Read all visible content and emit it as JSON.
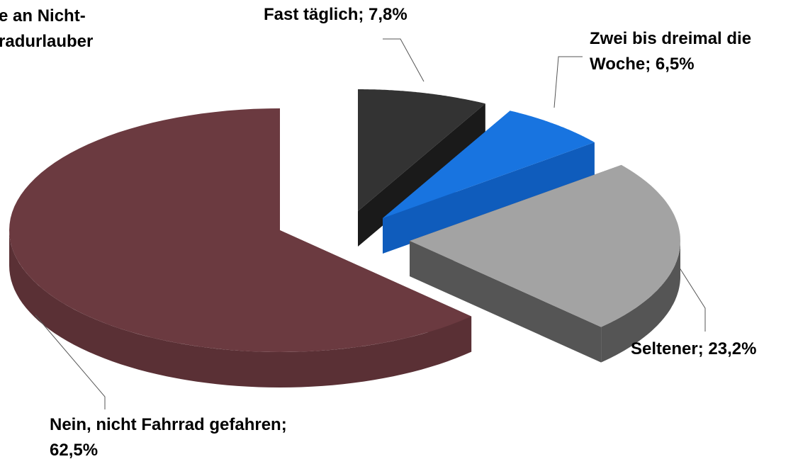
{
  "chart_data": {
    "type": "pie3d",
    "title": [
      "e an Nicht-",
      "radurlauber"
    ],
    "values": [
      7.8,
      6.5,
      23.2,
      62.5
    ],
    "value_labels": [
      [
        "Fast täglich; 7,8%"
      ],
      [
        "Zwei bis dreimal die",
        "Woche; 6,5%"
      ],
      [
        "Seltener; 23,2%"
      ],
      [
        "Nein, nicht Fahrrad gefahren;",
        "62,5%"
      ]
    ],
    "colors": [
      "#333333",
      "#1874e0",
      "#a3a3a3",
      "#6b3a40"
    ],
    "side_colors": [
      "#1a1a1a",
      "#0f5cbc",
      "#555555",
      "#5a3035"
    ]
  }
}
